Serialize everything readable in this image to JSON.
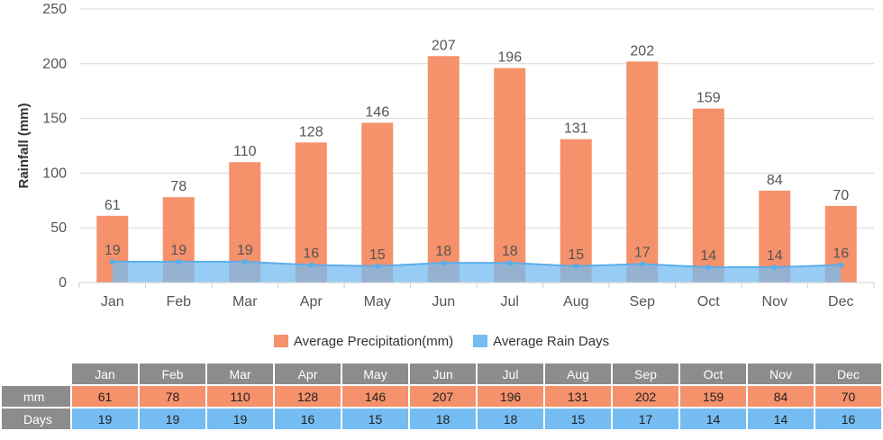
{
  "chart_data": {
    "type": "bar",
    "categories": [
      "Jan",
      "Feb",
      "Mar",
      "Apr",
      "May",
      "Jun",
      "Jul",
      "Aug",
      "Sep",
      "Oct",
      "Nov",
      "Dec"
    ],
    "series": [
      {
        "name": "Average Precipitation(mm)",
        "type": "bar",
        "values": [
          61,
          78,
          110,
          128,
          146,
          207,
          196,
          131,
          202,
          159,
          84,
          70
        ],
        "color": "#f5916b"
      },
      {
        "name": "Average Rain Days",
        "type": "area",
        "values": [
          19,
          19,
          19,
          16,
          15,
          18,
          18,
          15,
          17,
          14,
          14,
          16
        ],
        "color": "#74bcf2"
      }
    ],
    "ylabel": "Rainfall (mm)",
    "ylim": [
      0,
      250
    ],
    "yticks": [
      0,
      50,
      100,
      150,
      200,
      250
    ],
    "grid": true,
    "legend_position": "bottom"
  },
  "legend": [
    {
      "label": "Average Precipitation(mm)",
      "color": "#f5916b"
    },
    {
      "label": "Average Rain Days",
      "color": "#74bcf2"
    }
  ],
  "table": {
    "row_labels": [
      "mm",
      "Days"
    ]
  }
}
